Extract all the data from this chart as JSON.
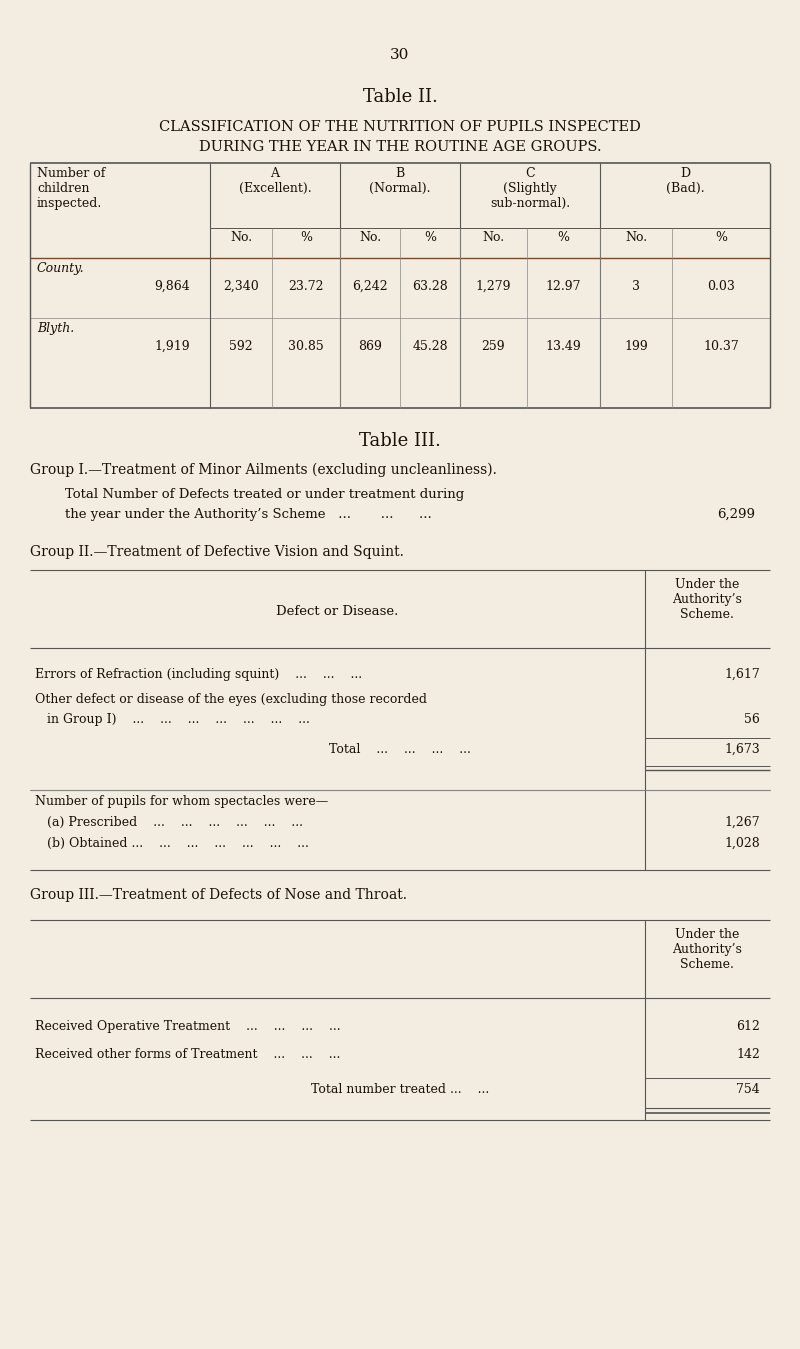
{
  "bg_color": "#f2ede0",
  "page_number": "30",
  "table2_title": "Table II.",
  "table2_subtitle1": "CLASSIFICATION OF THE NUTRITION OF PUPILS INSPECTED",
  "table2_subtitle2": "DURING THE YEAR IN THE ROUTINE AGE GROUPS.",
  "sub_headers": [
    "No.",
    "%",
    "No.",
    "%",
    "No.",
    "%",
    "No.",
    "%"
  ],
  "row1_label": "9,864",
  "row1_data": [
    "2,340",
    "23.72",
    "6,242",
    "63.28",
    "1,279",
    "12.97",
    "3",
    "0.03"
  ],
  "row2_label": "1,919",
  "row2_data": [
    "592",
    "30.85",
    "869",
    "45.28",
    "259",
    "13.49",
    "199",
    "10.37"
  ],
  "table3_title": "Table III.",
  "group1_heading": "Group I.—Treatment of Minor Ailments (excluding uncleanliness).",
  "group1_text1": "Total Number of Defects treated or under treatment during",
  "group1_text2a": "the year under the Authority’s Scheme   ...       ...      ...",
  "group1_val": "6,299",
  "group2_heading": "Group II.—Treatment of Defective Vision and Squint.",
  "group2_col_header": "Under the\nAuthority’s\nScheme.",
  "defect_col_label": "Defect or Disease.",
  "group2_row1_label": "Errors of Refraction (including squint)    ...    ...    ...",
  "group2_row1_val": "1,617",
  "group2_row2a_label": "Other defect or disease of the eyes (excluding those recorded",
  "group2_row2b_label": "   in Group I)    ...    ...    ...    ...    ...    ...    ...",
  "group2_row2_val": "56",
  "group2_total_label": "Total    ...    ...    ...    ...",
  "group2_total_val": "1,673",
  "group2_spectacles_label": "Number of pupils for whom spectacles were—",
  "group2_a_label": "   (a) Prescribed    ...    ...    ...    ...    ...    ...",
  "group2_a_val": "1,267",
  "group2_b_label": "   (b) Obtained ...    ...    ...    ...    ...    ...    ...",
  "group2_b_val": "1,028",
  "group3_heading": "Group III.—Treatment of Defects of Nose and Throat.",
  "group3_col_header": "Under the\nAuthority’s\nScheme.",
  "group3_row1_label": "Received Operative Treatment    ...    ...    ...    ...",
  "group3_row1_val": "612",
  "group3_row2_label": "Received other forms of Treatment    ...    ...    ...",
  "group3_row2_val": "142",
  "group3_total_label": "Total number treated ...    ...",
  "group3_total_val": "754"
}
